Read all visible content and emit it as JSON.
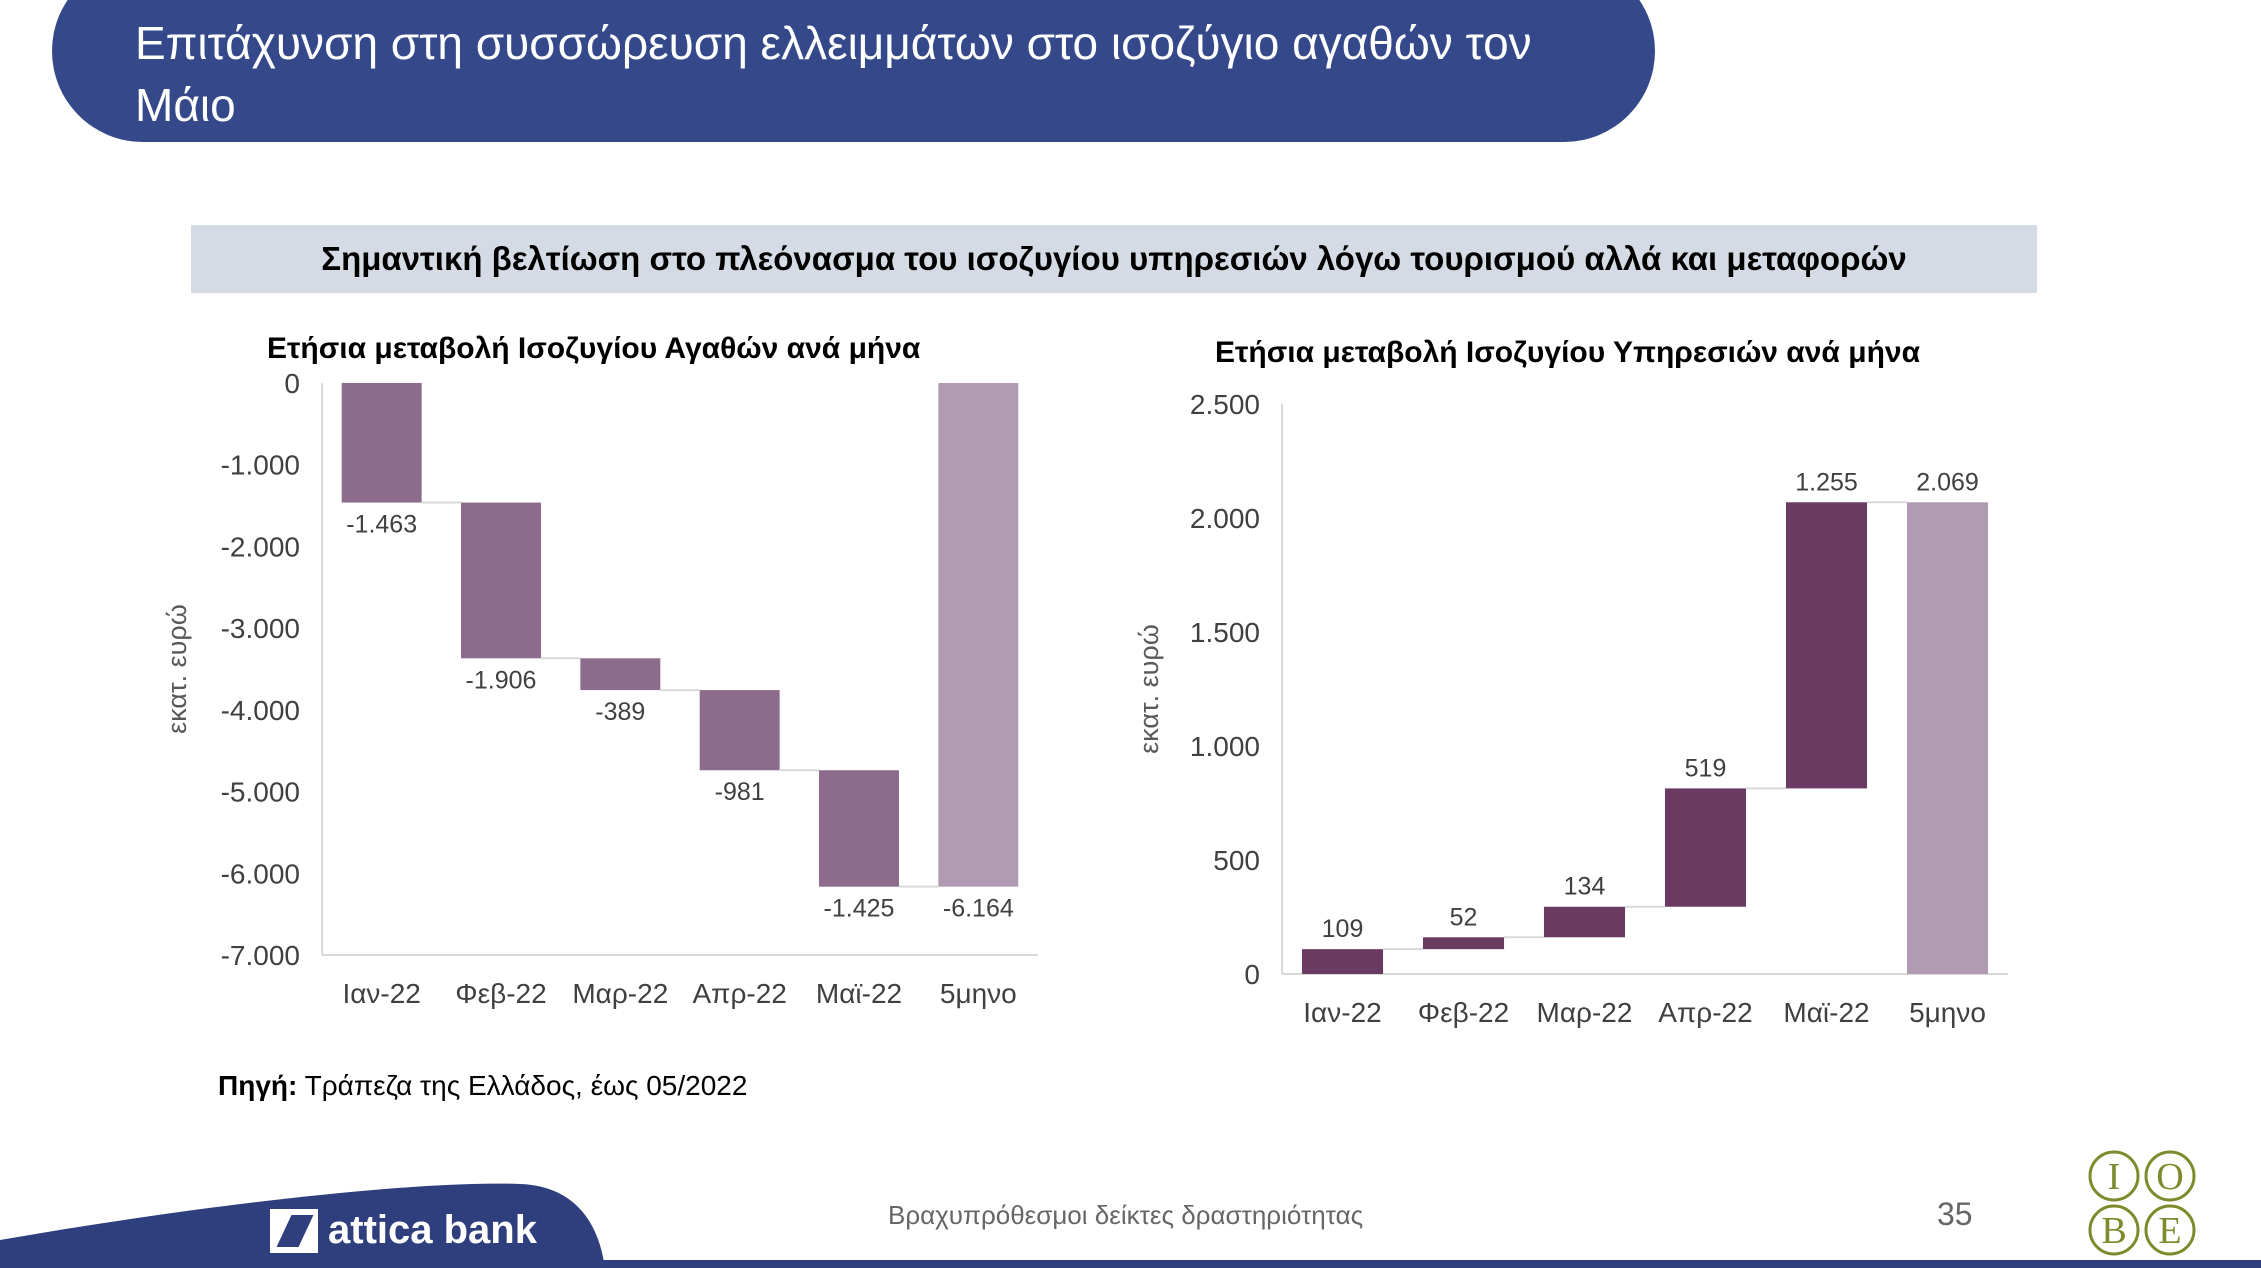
{
  "header": {
    "title": "Επιτάχυνση στη συσσώρευση ελλειμμάτων στο ισοζύγιο αγαθών τον Μάιο"
  },
  "banner": {
    "subtitle": "Σημαντική βελτίωση στο πλεόνασμα του ισοζυγίου υπηρεσιών λόγω τουρισμού αλλά και μεταφορών"
  },
  "chart_data": [
    {
      "type": "bar",
      "subtype": "waterfall",
      "title": "Ετήσια μεταβολή Ισοζυγίου Αγαθών ανά μήνα",
      "ylabel": "εκατ. ευρώ",
      "xlabel": "",
      "categories": [
        "Ιαν-22",
        "Φεβ-22",
        "Μαρ-22",
        "Απρ-22",
        "Μαϊ-22",
        "5μηνο"
      ],
      "values": [
        -1463,
        -1906,
        -389,
        -981,
        -1425,
        -6164
      ],
      "labels": [
        "-1.463",
        "-1.906",
        "-389",
        "-981",
        "-1.425",
        "-6.164"
      ],
      "ylim": [
        -7000,
        0
      ],
      "yticks": [
        0,
        -1000,
        -2000,
        -3000,
        -4000,
        -5000,
        -6000,
        -7000
      ],
      "ytick_labels": [
        "0",
        "-1.000",
        "-2.000",
        "-3.000",
        "-4.000",
        "-5.000",
        "-6.000",
        "-7.000"
      ],
      "grid": false,
      "colors": {
        "step": "#8c6b8c",
        "total": "#b19bb3",
        "axis": "#d9d9d9",
        "connector": "#d9d9d9"
      }
    },
    {
      "type": "bar",
      "subtype": "waterfall",
      "title": "Ετήσια μεταβολή Ισοζυγίου Υπηρεσιών ανά μήνα",
      "ylabel": "εκατ. ευρώ",
      "xlabel": "",
      "categories": [
        "Ιαν-22",
        "Φεβ-22",
        "Μαρ-22",
        "Απρ-22",
        "Μαϊ-22",
        "5μηνο"
      ],
      "values": [
        109,
        52,
        134,
        519,
        1255,
        2069
      ],
      "labels": [
        "109",
        "52",
        "134",
        "519",
        "1.255",
        "2.069"
      ],
      "ylim": [
        0,
        2500
      ],
      "yticks": [
        0,
        500,
        1000,
        1500,
        2000,
        2500
      ],
      "ytick_labels": [
        "0",
        "500",
        "1.000",
        "1.500",
        "2.000",
        "2.500"
      ],
      "grid": false,
      "colors": {
        "step": "#6b3a63",
        "total": "#b19bb3",
        "axis": "#d9d9d9",
        "connector": "#d9d9d9"
      }
    }
  ],
  "source": {
    "label": "Πηγή:",
    "text": " Τράπεζα της Ελλάδος, έως 05/2022"
  },
  "footer": {
    "brand": "attica bank",
    "note": "Βραχυπρόθεσμοι δείκτες δραστηριότητας",
    "page_number": "35",
    "iobe_letters": [
      "Ι",
      "Ο",
      "Β",
      "Ε"
    ]
  }
}
